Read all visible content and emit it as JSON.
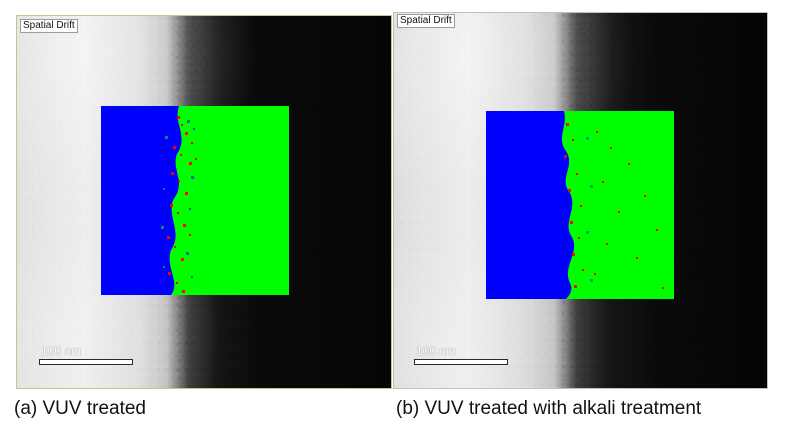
{
  "panels": [
    {
      "tag": "Spatial Drift",
      "scale_text": "100 nm",
      "caption": "(a) VUV treated"
    },
    {
      "tag": "Spatial Drift",
      "scale_text": "100 nm",
      "caption": "(b) VUV treated with alkali treatment"
    }
  ],
  "colors": {
    "map_blue": "#0000ff",
    "map_green": "#00ff00",
    "map_red": "#ff0000",
    "panel_a_border": "#c9c48a",
    "panel_b_border": "#bfbfbf"
  }
}
